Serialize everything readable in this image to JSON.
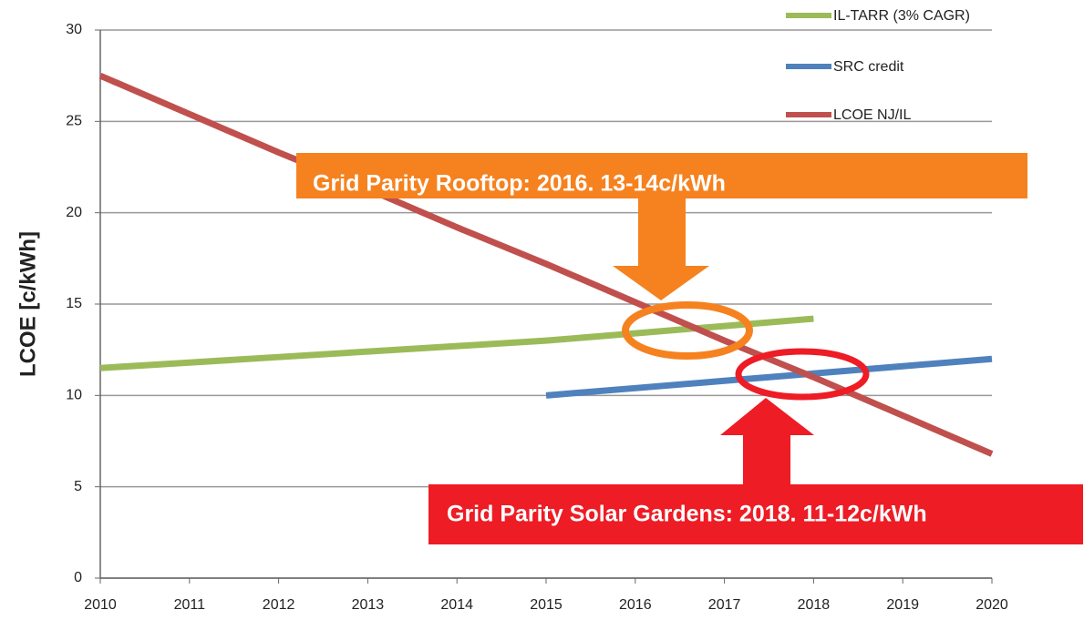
{
  "chart_data": {
    "type": "line",
    "y_label": "LCOE [c/kWh]",
    "x": [
      2010,
      2011,
      2012,
      2013,
      2014,
      2015,
      2016,
      2017,
      2018,
      2019,
      2020
    ],
    "xlim": [
      2010,
      2020
    ],
    "xticks": [
      2010,
      2011,
      2012,
      2013,
      2014,
      2015,
      2016,
      2017,
      2018,
      2019,
      2020
    ],
    "ylim": [
      0,
      30
    ],
    "yticks": [
      0,
      5,
      10,
      15,
      20,
      25,
      30
    ],
    "grid": true,
    "legend": "top-right",
    "series": [
      {
        "name": "IL-TARR (3% CAGR)",
        "color": "#9bbb59",
        "values": [
          11.5,
          11.8,
          12.1,
          12.4,
          12.7,
          13.0,
          13.4,
          13.8,
          14.2,
          null,
          null
        ]
      },
      {
        "name": "SRC credit",
        "color": "#4f81bd",
        "values": [
          null,
          null,
          null,
          null,
          null,
          10.0,
          10.4,
          10.8,
          11.2,
          11.6,
          12.0
        ]
      },
      {
        "name": "LCOE NJ/IL",
        "color": "#c0504d",
        "values": [
          27.5,
          25.4,
          23.3,
          21.3,
          19.2,
          17.2,
          15.1,
          13.0,
          11.0,
          8.9,
          6.8
        ]
      }
    ],
    "annotations": [
      "Grid Parity Rooftop: 2016. 13-14c/kWh",
      "Grid Parity Solar Gardens: 2018. 11-12c/kWh"
    ]
  }
}
